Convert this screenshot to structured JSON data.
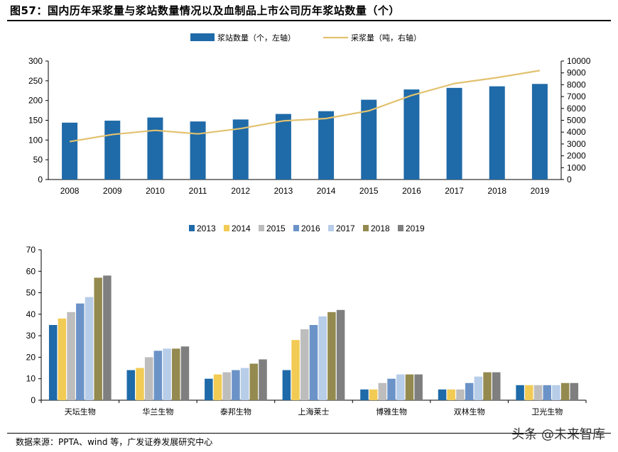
{
  "header": {
    "title": "图57：国内历年采浆量与浆站数量情况以及血制品上市公司历年浆站数量（个）"
  },
  "footer": {
    "source": "数据来源：PPTA、wind 等，广发证券发展研究中心",
    "watermark": "头条 @未来智库"
  },
  "chart_data": [
    {
      "type": "bar+line",
      "title": "",
      "categories": [
        "2008",
        "2009",
        "2010",
        "2011",
        "2012",
        "2013",
        "2014",
        "2015",
        "2016",
        "2017",
        "2018",
        "2019"
      ],
      "series": [
        {
          "name": "浆站数量（个，左轴）",
          "kind": "bar",
          "axis": "left",
          "color": "#1f6aa8",
          "values": [
            144,
            149,
            157,
            147,
            152,
            166,
            173,
            202,
            228,
            232,
            236,
            242
          ]
        },
        {
          "name": "采浆量（吨，右轴）",
          "kind": "line",
          "axis": "right",
          "color": "#e2c270",
          "values": [
            3200,
            3800,
            4150,
            3850,
            4300,
            4950,
            5150,
            5800,
            7100,
            8100,
            8600,
            9200
          ]
        }
      ],
      "y_left": {
        "min": 0,
        "max": 300,
        "ticks": [
          0,
          50,
          100,
          150,
          200,
          250,
          300
        ]
      },
      "y_right": {
        "min": 0,
        "max": 10000,
        "ticks": [
          0,
          1000,
          2000,
          3000,
          4000,
          5000,
          6000,
          7000,
          8000,
          9000,
          10000
        ]
      },
      "legend": "top-center",
      "grid": false
    },
    {
      "type": "bar",
      "title": "",
      "categories": [
        "天坛生物",
        "华兰生物",
        "泰邦生物",
        "上海莱士",
        "博雅生物",
        "双林生物",
        "卫光生物"
      ],
      "series": [
        {
          "name": "2013",
          "color": "#1f6aa8",
          "values": [
            35,
            14,
            10,
            14,
            5,
            5,
            7
          ]
        },
        {
          "name": "2014",
          "color": "#f2cb55",
          "values": [
            38,
            15,
            12,
            28,
            5,
            5,
            7
          ]
        },
        {
          "name": "2015",
          "color": "#bdbdbd",
          "values": [
            41,
            20,
            13,
            33,
            8,
            5,
            7
          ]
        },
        {
          "name": "2016",
          "color": "#6b93c8",
          "values": [
            45,
            23,
            14,
            35,
            10,
            8,
            7
          ]
        },
        {
          "name": "2017",
          "color": "#b7cde8",
          "values": [
            48,
            24,
            15,
            39,
            12,
            11,
            7
          ]
        },
        {
          "name": "2018",
          "color": "#948a4f",
          "values": [
            57,
            24,
            17,
            41,
            12,
            13,
            8
          ]
        },
        {
          "name": "2019",
          "color": "#7f7f7f",
          "values": [
            58,
            25,
            19,
            42,
            12,
            13,
            8
          ]
        }
      ],
      "y": {
        "min": 0,
        "max": 70,
        "ticks": [
          0,
          10,
          20,
          30,
          40,
          50,
          60,
          70
        ]
      },
      "legend": "top-center",
      "grid": false
    }
  ]
}
